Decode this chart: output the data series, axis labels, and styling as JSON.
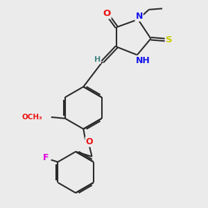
{
  "bg_color": "#ebebeb",
  "bond_color": "#2a2a2a",
  "bond_width": 1.5,
  "dbo": 0.06,
  "atom_colors": {
    "O": "#ee1111",
    "N": "#1111ee",
    "S": "#cccc00",
    "F": "#dd00dd",
    "H": "#448888"
  },
  "font_size": 8.5,
  "fig_width": 3.0,
  "fig_height": 3.0,
  "dpi": 100
}
